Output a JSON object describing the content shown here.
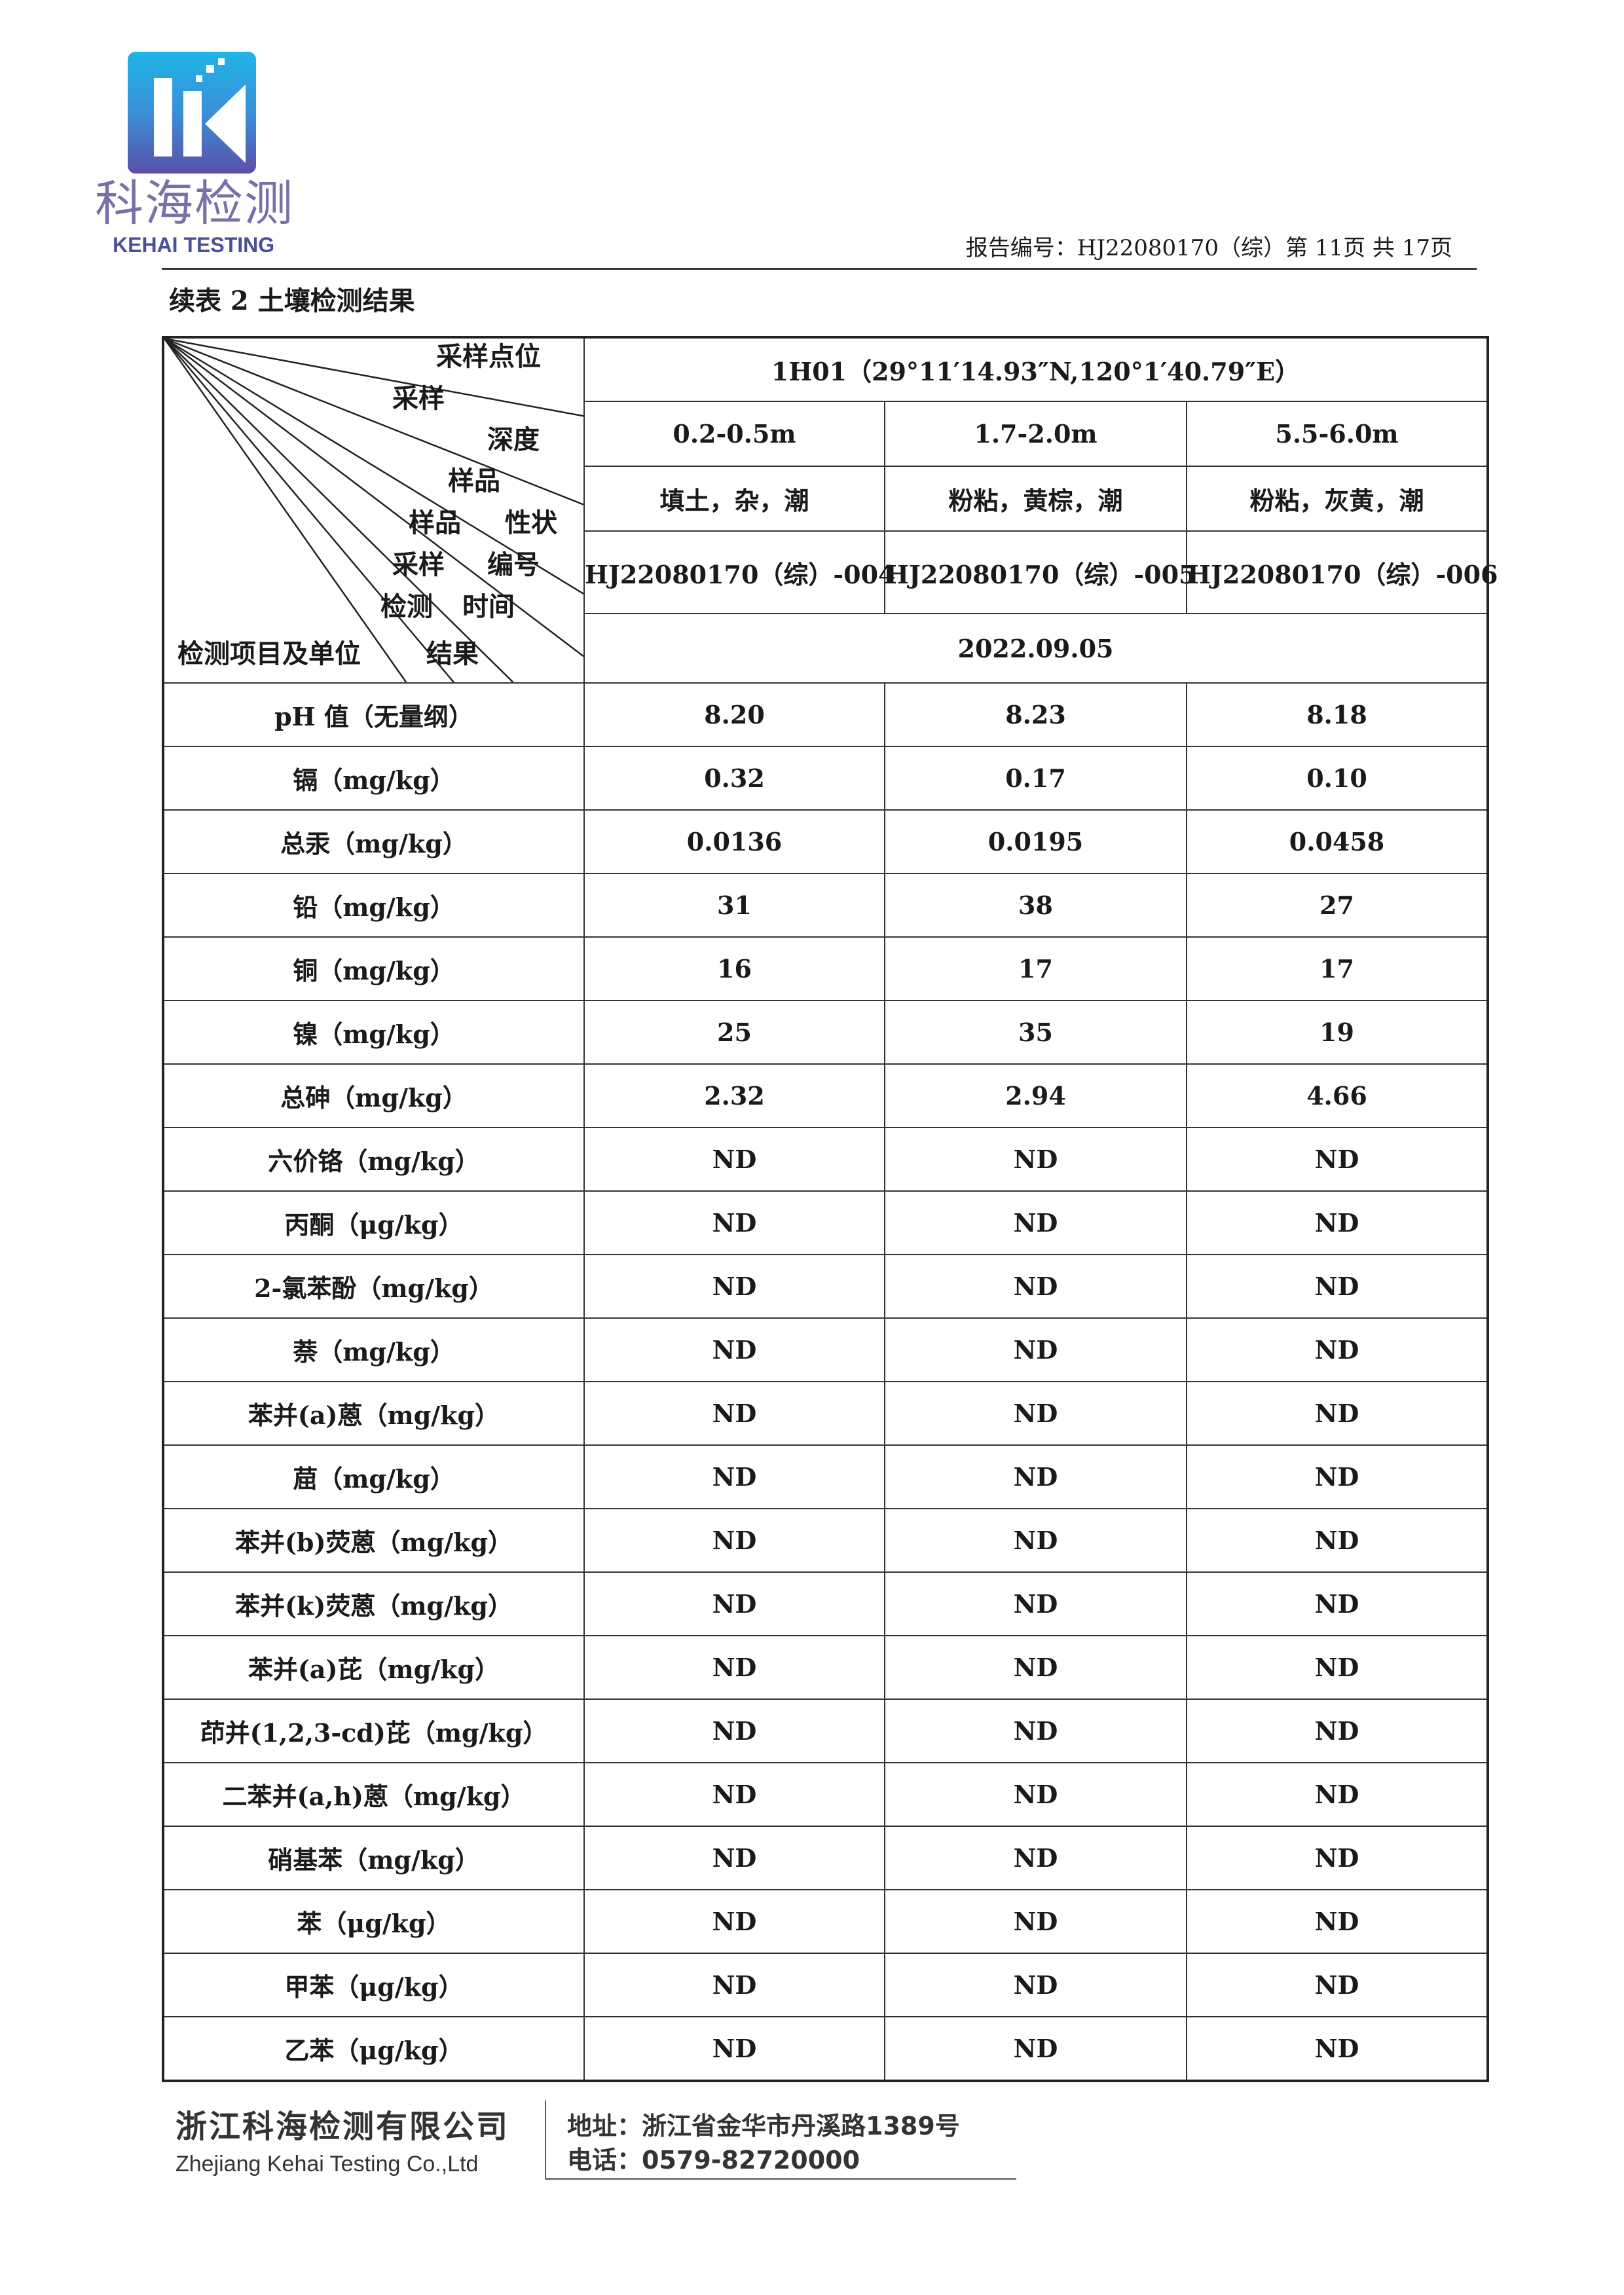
{
  "logo": {
    "cn": "科海检测",
    "en": "KEHAI TESTING",
    "mark": "HK"
  },
  "header": {
    "report_number": "报告编号：HJ22080170（综）第 11页 共 17页"
  },
  "caption": "续表 2 土壤检测结果",
  "table": {
    "diag_labels": {
      "sampling_point": "采样点位",
      "sampling_depth_1": "采样",
      "sampling_depth_2": "深度",
      "sample_property_1": "样品",
      "sample_property_2": "性状",
      "sample_id_1": "样品",
      "sample_id_2": "编号",
      "sampling_time_1": "采样",
      "sampling_time_2": "时间",
      "result_1": "检测",
      "result_2": "结果",
      "item_unit": "检测项目及单位"
    },
    "site": "1H01（29°11′14.93″N,120°1′40.79″E）",
    "depths": [
      "0.2-0.5m",
      "1.7-2.0m",
      "5.5-6.0m"
    ],
    "properties": [
      "填土，杂，潮",
      "粉粘，黄棕，潮",
      "粉粘，灰黄，潮"
    ],
    "sample_ids": [
      "HJ22080170（综）-004",
      "HJ22080170（综）-005",
      "HJ22080170（综）-006"
    ],
    "date": "2022.09.05",
    "rows": [
      {
        "item": "pH 值（无量纲）",
        "v": [
          "8.20",
          "8.23",
          "8.18"
        ]
      },
      {
        "item": "镉（mg/kg）",
        "v": [
          "0.32",
          "0.17",
          "0.10"
        ]
      },
      {
        "item": "总汞（mg/kg）",
        "v": [
          "0.0136",
          "0.0195",
          "0.0458"
        ]
      },
      {
        "item": "铅（mg/kg）",
        "v": [
          "31",
          "38",
          "27"
        ]
      },
      {
        "item": "铜（mg/kg）",
        "v": [
          "16",
          "17",
          "17"
        ]
      },
      {
        "item": "镍（mg/kg）",
        "v": [
          "25",
          "35",
          "19"
        ]
      },
      {
        "item": "总砷（mg/kg）",
        "v": [
          "2.32",
          "2.94",
          "4.66"
        ]
      },
      {
        "item": "六价铬（mg/kg）",
        "v": [
          "ND",
          "ND",
          "ND"
        ]
      },
      {
        "item": "丙酮（μg/kg）",
        "v": [
          "ND",
          "ND",
          "ND"
        ]
      },
      {
        "item": "2-氯苯酚（mg/kg）",
        "v": [
          "ND",
          "ND",
          "ND"
        ]
      },
      {
        "item": "萘（mg/kg）",
        "v": [
          "ND",
          "ND",
          "ND"
        ]
      },
      {
        "item": "苯并(a)蒽（mg/kg）",
        "v": [
          "ND",
          "ND",
          "ND"
        ]
      },
      {
        "item": "䓛（mg/kg）",
        "v": [
          "ND",
          "ND",
          "ND"
        ]
      },
      {
        "item": "苯并(b)荧蒽（mg/kg）",
        "v": [
          "ND",
          "ND",
          "ND"
        ]
      },
      {
        "item": "苯并(k)荧蒽（mg/kg）",
        "v": [
          "ND",
          "ND",
          "ND"
        ]
      },
      {
        "item": "苯并(a)芘（mg/kg）",
        "v": [
          "ND",
          "ND",
          "ND"
        ]
      },
      {
        "item": "茚并(1,2,3-cd)芘（mg/kg）",
        "v": [
          "ND",
          "ND",
          "ND"
        ]
      },
      {
        "item": "二苯并(a,h)蒽（mg/kg）",
        "v": [
          "ND",
          "ND",
          "ND"
        ]
      },
      {
        "item": "硝基苯（mg/kg）",
        "v": [
          "ND",
          "ND",
          "ND"
        ]
      },
      {
        "item": "苯（μg/kg）",
        "v": [
          "ND",
          "ND",
          "ND"
        ]
      },
      {
        "item": "甲苯（μg/kg）",
        "v": [
          "ND",
          "ND",
          "ND"
        ]
      },
      {
        "item": "乙苯（μg/kg）",
        "v": [
          "ND",
          "ND",
          "ND"
        ]
      }
    ]
  },
  "footer": {
    "company_cn": "浙江科海检测有限公司",
    "company_en": "Zhejiang Kehai Testing Co.,Ltd",
    "address": "地址：浙江省金华市丹溪路1389号",
    "phone": "电话：0579-82720000"
  }
}
